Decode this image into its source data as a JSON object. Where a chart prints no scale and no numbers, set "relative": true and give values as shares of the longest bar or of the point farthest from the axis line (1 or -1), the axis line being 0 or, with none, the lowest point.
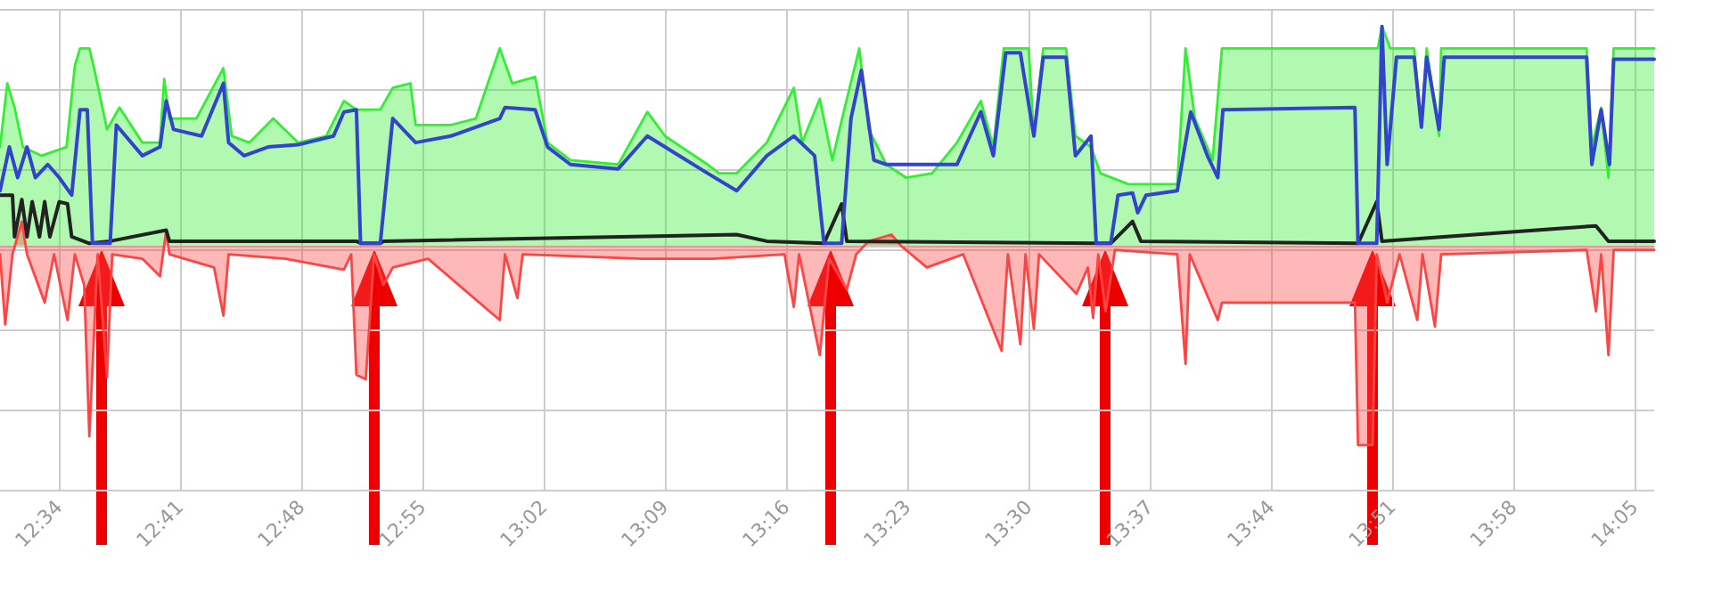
{
  "chart_data": {
    "type": "area",
    "relative": true,
    "grid": true,
    "marker": "none",
    "line_style": "solid",
    "xlim": [
      12.51,
      14.102
    ],
    "xticks": [
      {
        "value": 12.5667,
        "label": "12:34"
      },
      {
        "value": 12.6833,
        "label": "12:41"
      },
      {
        "value": 12.8,
        "label": "12:48"
      },
      {
        "value": 12.9167,
        "label": "12:55"
      },
      {
        "value": 13.0333,
        "label": "13:02"
      },
      {
        "value": 13.15,
        "label": "13:09"
      },
      {
        "value": 13.2667,
        "label": "13:16"
      },
      {
        "value": 13.3833,
        "label": "13:23"
      },
      {
        "value": 13.5,
        "label": "13:30"
      },
      {
        "value": 13.6167,
        "label": "13:37"
      },
      {
        "value": 13.7333,
        "label": "13:44"
      },
      {
        "value": 13.85,
        "label": "13:51"
      },
      {
        "value": 13.9667,
        "label": "13:58"
      },
      {
        "value": 14.0833,
        "label": "14:05"
      }
    ],
    "series": [
      {
        "color": "#33ee33",
        "x": [
          12.51,
          12.517,
          12.524,
          12.532,
          12.55,
          12.574,
          12.582,
          12.587,
          12.596,
          12.601,
          12.613,
          12.625,
          12.647,
          12.664,
          12.668,
          12.673,
          12.699,
          12.725,
          12.733,
          12.75,
          12.773,
          12.797,
          12.824,
          12.841,
          12.853,
          12.876,
          12.888,
          12.905,
          12.91,
          12.944,
          12.968,
          12.991,
          13.003,
          13.025,
          13.037,
          13.059,
          13.105,
          13.133,
          13.15,
          13.191,
          13.202,
          13.219,
          13.248,
          13.274,
          13.282,
          13.299,
          13.311,
          13.322,
          13.337,
          13.346,
          13.363,
          13.382,
          13.407,
          13.431,
          13.454,
          13.466,
          13.476,
          13.5,
          13.505,
          13.514,
          13.536,
          13.545,
          13.56,
          13.569,
          13.596,
          13.643,
          13.651,
          13.66,
          13.677,
          13.686,
          13.836,
          13.84,
          13.848,
          13.871,
          13.878,
          13.883,
          13.895,
          13.897,
          14.037,
          14.042,
          14.051,
          14.058,
          14.063,
          14.102
        ],
        "values": [
          0.45,
          0.74,
          0.63,
          0.45,
          0.41,
          0.45,
          0.82,
          0.9,
          0.9,
          0.8,
          0.53,
          0.63,
          0.47,
          0.47,
          0.76,
          0.58,
          0.58,
          0.81,
          0.5,
          0.47,
          0.58,
          0.47,
          0.5,
          0.66,
          0.62,
          0.62,
          0.72,
          0.74,
          0.55,
          0.55,
          0.58,
          0.9,
          0.74,
          0.77,
          0.47,
          0.39,
          0.37,
          0.61,
          0.5,
          0.37,
          0.33,
          0.33,
          0.47,
          0.72,
          0.47,
          0.67,
          0.39,
          0.61,
          0.9,
          0.53,
          0.37,
          0.31,
          0.33,
          0.47,
          0.66,
          0.45,
          0.9,
          0.9,
          0.5,
          0.9,
          0.9,
          0.5,
          0.45,
          0.33,
          0.28,
          0.28,
          0.9,
          0.58,
          0.39,
          0.9,
          0.9,
          1.0,
          0.9,
          0.9,
          0.55,
          0.9,
          0.5,
          0.9,
          0.9,
          0.45,
          0.63,
          0.31,
          0.9,
          0.9
        ]
      },
      {
        "type": "line",
        "color": "#3344cc",
        "x": [
          12.51,
          12.519,
          12.527,
          12.536,
          12.544,
          12.556,
          12.567,
          12.579,
          12.587,
          12.594,
          12.599,
          12.616,
          12.622,
          12.647,
          12.664,
          12.67,
          12.677,
          12.704,
          12.725,
          12.73,
          12.745,
          12.768,
          12.797,
          12.831,
          12.841,
          12.853,
          12.857,
          12.876,
          12.888,
          12.91,
          12.944,
          12.991,
          12.996,
          13.025,
          13.037,
          13.059,
          13.105,
          13.133,
          13.191,
          13.219,
          13.248,
          13.274,
          13.294,
          13.303,
          13.32,
          13.329,
          13.339,
          13.351,
          13.363,
          13.431,
          13.454,
          13.466,
          13.478,
          13.492,
          13.505,
          13.514,
          13.536,
          13.545,
          13.56,
          13.565,
          13.579,
          13.586,
          13.6,
          13.605,
          13.613,
          13.643,
          13.656,
          13.672,
          13.682,
          13.687,
          13.814,
          13.817,
          13.835,
          13.84,
          13.845,
          13.854,
          13.871,
          13.878,
          13.883,
          13.895,
          13.9,
          14.037,
          14.042,
          14.051,
          14.059,
          14.063,
          14.102
        ],
        "values": [
          0.25,
          0.45,
          0.31,
          0.45,
          0.31,
          0.37,
          0.31,
          0.23,
          0.62,
          0.62,
          0.01,
          0.01,
          0.55,
          0.41,
          0.45,
          0.66,
          0.53,
          0.5,
          0.74,
          0.47,
          0.41,
          0.45,
          0.46,
          0.5,
          0.61,
          0.62,
          0.01,
          0.01,
          0.58,
          0.47,
          0.5,
          0.58,
          0.63,
          0.62,
          0.45,
          0.37,
          0.35,
          0.5,
          0.33,
          0.25,
          0.41,
          0.5,
          0.41,
          0.01,
          0.01,
          0.58,
          0.8,
          0.39,
          0.37,
          0.37,
          0.61,
          0.41,
          0.88,
          0.88,
          0.5,
          0.86,
          0.86,
          0.41,
          0.5,
          0.01,
          0.01,
          0.23,
          0.24,
          0.15,
          0.23,
          0.25,
          0.61,
          0.41,
          0.31,
          0.62,
          0.63,
          0.01,
          0.01,
          1.0,
          0.37,
          0.86,
          0.86,
          0.54,
          0.86,
          0.53,
          0.86,
          0.86,
          0.37,
          0.62,
          0.37,
          0.85,
          0.85
        ]
      },
      {
        "type": "area",
        "color": "#ff4444",
        "x": [
          12.51,
          12.515,
          12.522,
          12.531,
          12.536,
          12.553,
          12.562,
          12.575,
          12.582,
          12.591,
          12.596,
          12.604,
          12.613,
          12.618,
          12.647,
          12.664,
          12.67,
          12.673,
          12.716,
          12.725,
          12.73,
          12.785,
          12.841,
          12.848,
          12.853,
          12.862,
          12.87,
          12.879,
          12.888,
          12.922,
          12.991,
          12.996,
          13.008,
          13.013,
          13.128,
          13.196,
          13.265,
          13.274,
          13.279,
          13.299,
          13.308,
          13.325,
          13.334,
          13.346,
          13.368,
          13.377,
          13.402,
          13.437,
          13.474,
          13.48,
          13.492,
          13.497,
          13.505,
          13.51,
          13.546,
          13.557,
          13.562,
          13.567,
          13.574,
          13.583,
          13.643,
          13.651,
          13.655,
          13.682,
          13.686,
          13.814,
          13.817,
          13.831,
          13.835,
          13.845,
          13.857,
          13.874,
          13.879,
          13.891,
          13.897,
          14.037,
          14.046,
          14.051,
          14.058,
          14.063,
          14.102
        ],
        "values": [
          -0.04,
          -0.36,
          -0.04,
          0.11,
          -0.04,
          -0.26,
          -0.04,
          -0.34,
          -0.04,
          -0.18,
          -0.87,
          -0.04,
          -0.6,
          -0.04,
          -0.06,
          -0.14,
          0.07,
          -0.04,
          -0.1,
          -0.32,
          -0.04,
          -0.06,
          -0.11,
          -0.04,
          -0.59,
          -0.61,
          -0.04,
          -0.18,
          -0.1,
          -0.06,
          -0.34,
          -0.04,
          -0.24,
          -0.04,
          -0.06,
          -0.06,
          -0.04,
          -0.28,
          -0.04,
          -0.5,
          -0.06,
          -0.2,
          -0.04,
          0.02,
          0.05,
          0,
          -0.1,
          -0.04,
          -0.48,
          -0.04,
          -0.45,
          -0.04,
          -0.38,
          -0.04,
          -0.22,
          -0.1,
          -0.33,
          -0.04,
          -0.3,
          -0.02,
          -0.04,
          -0.54,
          -0.04,
          -0.34,
          -0.26,
          -0.26,
          -0.91,
          -0.91,
          -0.04,
          -0.26,
          -0.04,
          -0.34,
          -0.04,
          -0.37,
          -0.04,
          -0.02,
          -0.3,
          -0.04,
          -0.5,
          -0.02,
          -0.02
        ]
      },
      {
        "type": "line",
        "color": "#222222",
        "x": [
          12.51,
          12.522,
          12.524,
          12.531,
          12.536,
          12.541,
          12.548,
          12.553,
          12.558,
          12.567,
          12.575,
          12.579,
          12.596,
          12.616,
          12.67,
          12.673,
          12.853,
          12.857,
          12.876,
          12.879,
          13.219,
          13.248,
          13.303,
          13.32,
          13.325,
          13.565,
          13.579,
          13.6,
          13.608,
          13.817,
          13.835,
          13.84,
          14.046,
          14.058,
          14.102
        ],
        "values": [
          0.23,
          0.23,
          0.04,
          0.21,
          0.04,
          0.2,
          0.04,
          0.2,
          0.04,
          0.2,
          0.19,
          0.04,
          0.01,
          0.02,
          0.07,
          0.02,
          0.02,
          0.01,
          0.01,
          0.02,
          0.05,
          0.02,
          0.01,
          0.19,
          0.02,
          0.01,
          0.01,
          0.11,
          0.02,
          0.01,
          0.2,
          0.02,
          0.09,
          0.02,
          0.02
        ]
      }
    ]
  }
}
